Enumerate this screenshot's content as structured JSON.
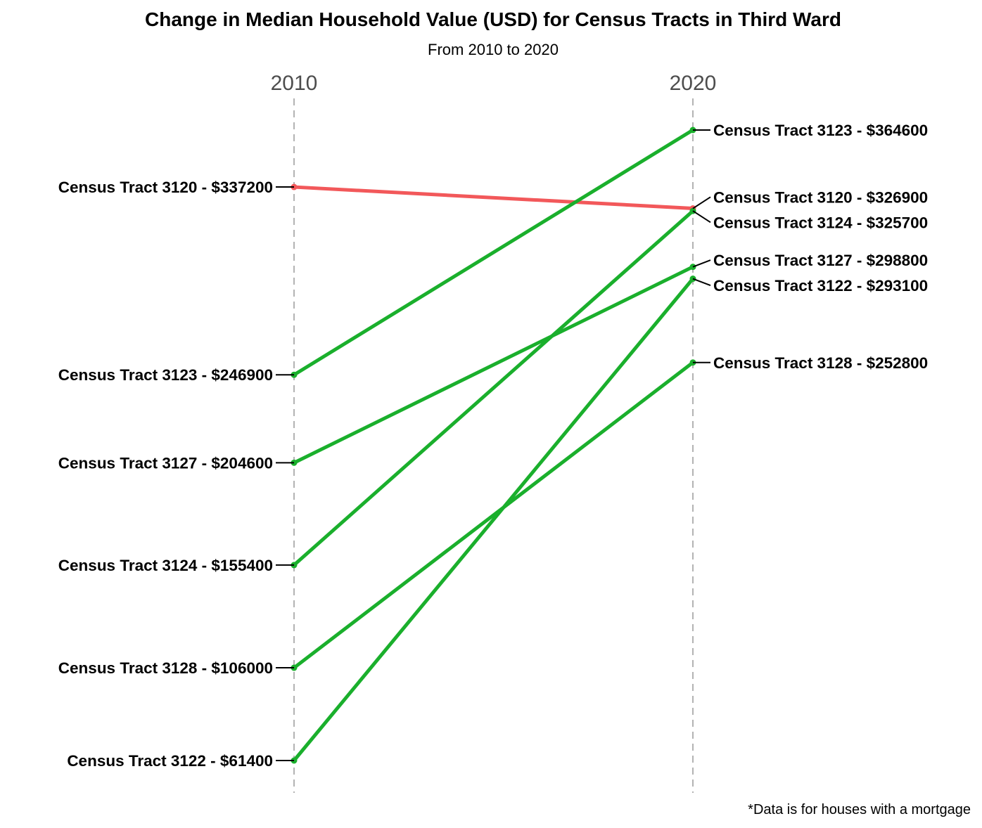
{
  "chart_data": {
    "type": "line",
    "title": "Change in Median Household Value (USD) for Census Tracts in Third Ward",
    "subtitle": "From 2010 to 2020",
    "caption": "*Data is for houses with a mortgage",
    "x": [
      "2010",
      "2020"
    ],
    "ylim": [
      61400,
      364600
    ],
    "colors": {
      "increase": "#1aaf2c",
      "decrease": "#f2585a"
    },
    "series": [
      {
        "name": "Census Tract 3120",
        "values": [
          337200,
          326900
        ],
        "labels": [
          "Census Tract 3120 - $337200",
          "Census Tract 3120 - $326900"
        ]
      },
      {
        "name": "Census Tract 3123",
        "values": [
          246900,
          364600
        ],
        "labels": [
          "Census Tract 3123 - $246900",
          "Census Tract 3123 - $364600"
        ]
      },
      {
        "name": "Census Tract 3127",
        "values": [
          204600,
          298800
        ],
        "labels": [
          "Census Tract 3127 - $204600",
          "Census Tract 3127 - $298800"
        ]
      },
      {
        "name": "Census Tract 3124",
        "values": [
          155400,
          325700
        ],
        "labels": [
          "Census Tract 3124 - $155400",
          "Census Tract 3124 - $325700"
        ]
      },
      {
        "name": "Census Tract 3128",
        "values": [
          106000,
          252800
        ],
        "labels": [
          "Census Tract 3128 - $106000",
          "Census Tract 3128 - $252800"
        ]
      },
      {
        "name": "Census Tract 3122",
        "values": [
          61400,
          293100
        ],
        "labels": [
          "Census Tract 3122 - $61400",
          "Census Tract 3122 - $293100"
        ]
      }
    ]
  }
}
